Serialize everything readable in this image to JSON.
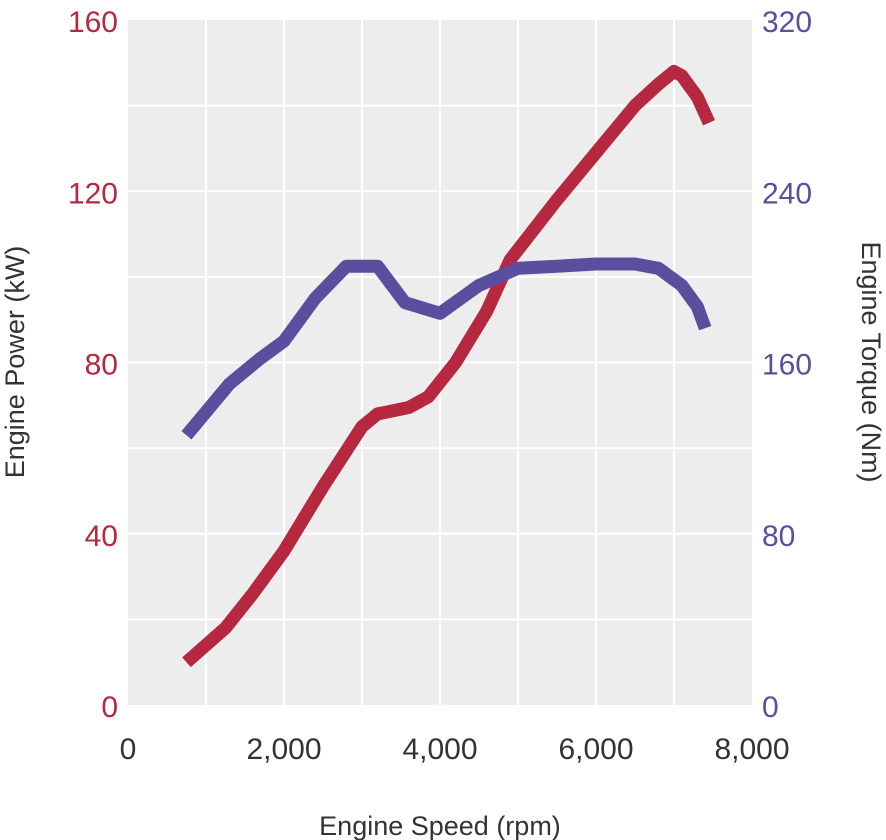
{
  "chart_data": {
    "type": "line",
    "xlabel": "Engine Speed (rpm)",
    "ylabel_left": "Engine Power (kW)",
    "ylabel_right": "Engine Torque (Nm)",
    "xlim": [
      0,
      8000
    ],
    "ylim_left": [
      0,
      160
    ],
    "ylim_right": [
      0,
      320
    ],
    "x_ticks": [
      "0",
      "2,000",
      "4,000",
      "6,000",
      "8,000"
    ],
    "y_left_ticks": [
      "0",
      "40",
      "80",
      "120",
      "160"
    ],
    "y_right_ticks": [
      "0",
      "80",
      "160",
      "240",
      "320"
    ],
    "grid": true,
    "legend": "none",
    "series": [
      {
        "axis": "left",
        "color": "#b5283f",
        "x": [
          750,
          1250,
          1600,
          2000,
          2500,
          3000,
          3200,
          3600,
          3850,
          4200,
          4600,
          4900,
          5500,
          6000,
          6500,
          6800,
          7000,
          7100,
          7300,
          7450
        ],
        "y": [
          10,
          18,
          26,
          36,
          51,
          65,
          68,
          69.5,
          72,
          80,
          92,
          104,
          118,
          129,
          140,
          145,
          148,
          147,
          142,
          136
        ]
      },
      {
        "axis": "right",
        "color": "#5a4f9e",
        "x": [
          750,
          1300,
          1700,
          2000,
          2400,
          2800,
          3200,
          3550,
          4000,
          4500,
          5000,
          5500,
          6000,
          6500,
          6800,
          7100,
          7300,
          7400
        ],
        "y": [
          126,
          150,
          162,
          170,
          190,
          205,
          205,
          188,
          183,
          196,
          204,
          205,
          206,
          206,
          204,
          196,
          186,
          176
        ]
      }
    ],
    "colors": {
      "plot_background": "#ededed",
      "grid": "#ffffff",
      "left_axis": "#b5283f",
      "right_axis": "#5a4f9e",
      "x_axis": "#333333"
    }
  }
}
